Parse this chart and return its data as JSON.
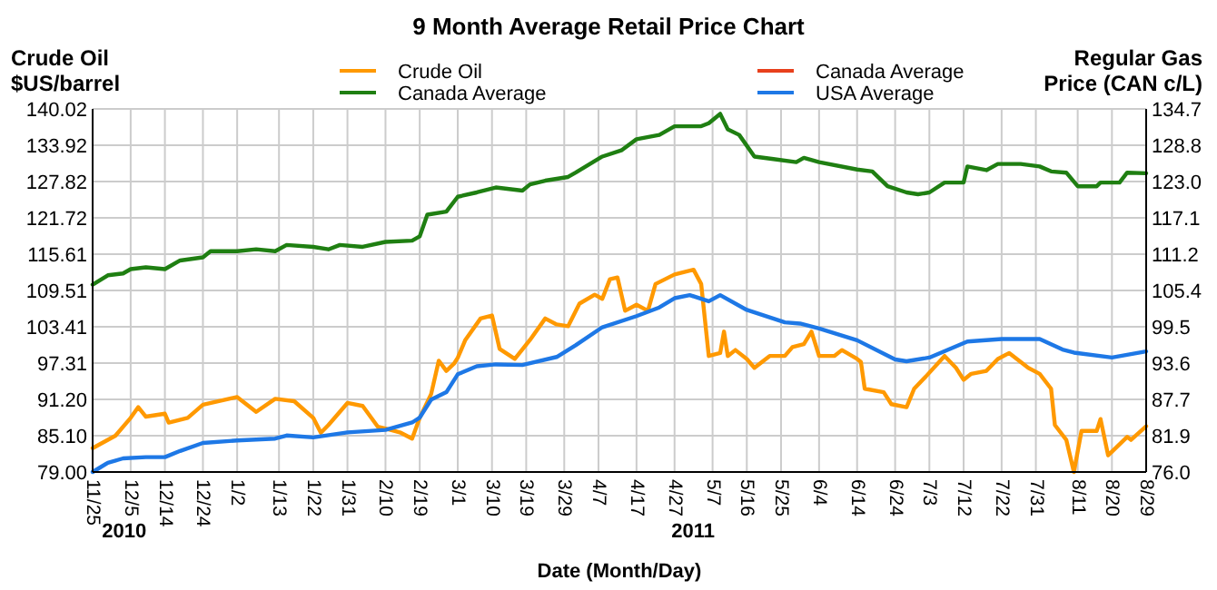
{
  "chart_data": {
    "type": "line",
    "title": "9 Month Average Retail Price Chart",
    "xlabel": "Date (Month/Day)",
    "ylabel": "Crude Oil\n$US/barrel",
    "y2label": "Regular Gas\nPrice (CAN c/L)",
    "annotations": [
      "2010",
      "2011"
    ],
    "xlim": [
      "2010-11-25",
      "2011-08-29"
    ],
    "xticks": [
      {
        "value": "2010-11-25",
        "label": "11/25"
      },
      {
        "value": "2010-12-05",
        "label": "12/5"
      },
      {
        "value": "2010-12-14",
        "label": "12/14"
      },
      {
        "value": "2010-12-24",
        "label": "12/24"
      },
      {
        "value": "2011-01-02",
        "label": "1/2"
      },
      {
        "value": "2011-01-13",
        "label": "1/13"
      },
      {
        "value": "2011-01-22",
        "label": "1/22"
      },
      {
        "value": "2011-01-31",
        "label": "1/31"
      },
      {
        "value": "2011-02-10",
        "label": "2/10"
      },
      {
        "value": "2011-02-19",
        "label": "2/19"
      },
      {
        "value": "2011-03-01",
        "label": "3/1"
      },
      {
        "value": "2011-03-10",
        "label": "3/10"
      },
      {
        "value": "2011-03-19",
        "label": "3/19"
      },
      {
        "value": "2011-03-29",
        "label": "3/29"
      },
      {
        "value": "2011-04-07",
        "label": "4/7"
      },
      {
        "value": "2011-04-17",
        "label": "4/17"
      },
      {
        "value": "2011-04-27",
        "label": "4/27"
      },
      {
        "value": "2011-05-07",
        "label": "5/7"
      },
      {
        "value": "2011-05-16",
        "label": "5/16"
      },
      {
        "value": "2011-05-25",
        "label": "5/25"
      },
      {
        "value": "2011-06-04",
        "label": "6/4"
      },
      {
        "value": "2011-06-14",
        "label": "6/14"
      },
      {
        "value": "2011-06-24",
        "label": "6/24"
      },
      {
        "value": "2011-07-03",
        "label": "7/3"
      },
      {
        "value": "2011-07-12",
        "label": "7/12"
      },
      {
        "value": "2011-07-22",
        "label": "7/22"
      },
      {
        "value": "2011-07-31",
        "label": "7/31"
      },
      {
        "value": "2011-08-11",
        "label": "8/11"
      },
      {
        "value": "2011-08-20",
        "label": "8/20"
      },
      {
        "value": "2011-08-29",
        "label": "8/29"
      }
    ],
    "ylim": [
      79.0,
      140.02
    ],
    "yticks": [
      {
        "value": 79,
        "label": "79.00"
      },
      {
        "value": 85.1,
        "label": "85.10"
      },
      {
        "value": 91.2,
        "label": "91.20"
      },
      97.31,
      103.41,
      109.51,
      115.61,
      121.72,
      127.82,
      133.92,
      140.02
    ],
    "y2lim": [
      76.0,
      134.7
    ],
    "y2ticks": [
      {
        "value": 76,
        "label": "76.0"
      },
      81.9,
      87.7,
      93.6,
      99.5,
      105.4,
      111.2,
      117.1,
      {
        "value": 123,
        "label": "123.0"
      },
      128.8,
      134.7
    ],
    "grid": true,
    "legend": "top",
    "marker": "none",
    "line_style": "solid",
    "series": [
      {
        "name": "Crude Oil",
        "color": "#ff9900",
        "x": [
          "2010-11-25",
          "2010-12-01",
          "2010-12-05",
          "2010-12-07",
          "2010-12-09",
          "2010-12-14",
          "2010-12-15",
          "2010-12-20",
          "2010-12-24",
          "2011-01-02",
          "2011-01-07",
          "2011-01-12",
          "2011-01-17",
          "2011-01-22",
          "2011-01-24",
          "2011-01-26",
          "2011-01-31",
          "2011-02-04",
          "2011-02-08",
          "2011-02-10",
          "2011-02-14",
          "2011-02-17",
          "2011-02-19",
          "2011-02-22",
          "2011-02-24",
          "2011-02-26",
          "2011-02-28",
          "2011-03-01",
          "2011-03-03",
          "2011-03-07",
          "2011-03-10",
          "2011-03-12",
          "2011-03-16",
          "2011-03-20",
          "2011-03-24",
          "2011-03-27",
          "2011-03-30",
          "2011-04-02",
          "2011-04-06",
          "2011-04-08",
          "2011-04-10",
          "2011-04-12",
          "2011-04-14",
          "2011-04-17",
          "2011-04-20",
          "2011-04-22",
          "2011-04-27",
          "2011-05-02",
          "2011-05-04",
          "2011-05-06",
          "2011-05-09",
          "2011-05-10",
          "2011-05-11",
          "2011-05-13",
          "2011-05-16",
          "2011-05-18",
          "2011-05-22",
          "2011-05-26",
          "2011-05-28",
          "2011-05-31",
          "2011-06-02",
          "2011-06-04",
          "2011-06-08",
          "2011-06-10",
          "2011-06-14",
          "2011-06-15",
          "2011-06-16",
          "2011-06-21",
          "2011-06-23",
          "2011-06-27",
          "2011-06-29",
          "2011-07-02",
          "2011-07-07",
          "2011-07-10",
          "2011-07-12",
          "2011-07-14",
          "2011-07-18",
          "2011-07-21",
          "2011-07-24",
          "2011-07-26",
          "2011-07-29",
          "2011-08-01",
          "2011-08-04",
          "2011-08-05",
          "2011-08-08",
          "2011-08-10",
          "2011-08-12",
          "2011-08-16",
          "2011-08-17",
          "2011-08-19",
          "2011-08-24",
          "2011-08-25",
          "2011-08-29"
        ],
        "values": [
          83.0,
          85.1,
          88.1,
          89.9,
          88.3,
          88.8,
          87.3,
          88.1,
          90.3,
          91.6,
          89.1,
          91.3,
          90.9,
          88.1,
          85.6,
          86.9,
          90.6,
          90.1,
          86.6,
          86.3,
          85.6,
          84.6,
          88.1,
          92.1,
          97.7,
          96.0,
          97.2,
          98.2,
          101.2,
          104.8,
          105.3,
          99.7,
          98.0,
          101.2,
          104.8,
          103.8,
          103.5,
          107.3,
          108.8,
          108.1,
          111.4,
          111.7,
          106.1,
          107.1,
          106.1,
          110.6,
          112.2,
          113.0,
          110.6,
          98.5,
          99.0,
          102.6,
          98.5,
          99.5,
          98.0,
          96.5,
          98.5,
          98.5,
          100.0,
          100.5,
          102.6,
          98.5,
          98.5,
          99.5,
          98.0,
          97.5,
          93.0,
          92.4,
          90.4,
          89.9,
          93.0,
          95.0,
          98.5,
          96.5,
          94.5,
          95.5,
          96.0,
          98.0,
          99.0,
          98.0,
          96.5,
          95.5,
          93.0,
          86.9,
          84.4,
          79.0,
          85.9,
          85.9,
          87.9,
          81.8,
          84.9,
          84.4,
          86.7
        ]
      },
      {
        "name": "Canada Average",
        "color": "#1f7f12",
        "axis": "y2",
        "x": [
          "2010-11-25",
          "2010-11-29",
          "2010-12-03",
          "2010-12-05",
          "2010-12-09",
          "2010-12-14",
          "2010-12-18",
          "2010-12-24",
          "2010-12-26",
          "2011-01-02",
          "2011-01-07",
          "2011-01-12",
          "2011-01-15",
          "2011-01-22",
          "2011-01-26",
          "2011-01-29",
          "2011-02-04",
          "2011-02-10",
          "2011-02-17",
          "2011-02-19",
          "2011-02-21",
          "2011-02-26",
          "2011-03-01",
          "2011-03-06",
          "2011-03-11",
          "2011-03-18",
          "2011-03-20",
          "2011-03-24",
          "2011-03-30",
          "2011-04-01",
          "2011-04-08",
          "2011-04-13",
          "2011-04-17",
          "2011-04-23",
          "2011-04-27",
          "2011-05-04",
          "2011-05-06",
          "2011-05-09",
          "2011-05-11",
          "2011-05-14",
          "2011-05-18",
          "2011-05-23",
          "2011-05-29",
          "2011-05-31",
          "2011-06-04",
          "2011-06-14",
          "2011-06-18",
          "2011-06-22",
          "2011-06-27",
          "2011-06-30",
          "2011-07-03",
          "2011-07-07",
          "2011-07-12",
          "2011-07-13",
          "2011-07-18",
          "2011-07-21",
          "2011-07-27",
          "2011-08-01",
          "2011-08-04",
          "2011-08-08",
          "2011-08-11",
          "2011-08-16",
          "2011-08-17",
          "2011-08-22",
          "2011-08-24",
          "2011-08-29"
        ],
        "values": [
          106.3,
          107.8,
          108.1,
          108.8,
          109.1,
          108.8,
          110.2,
          110.7,
          111.7,
          111.7,
          112.0,
          111.7,
          112.7,
          112.4,
          112.0,
          112.7,
          112.4,
          113.2,
          113.4,
          114.1,
          117.6,
          118.1,
          120.5,
          121.2,
          122.0,
          121.5,
          122.5,
          123.1,
          123.7,
          124.4,
          127.0,
          128.0,
          129.8,
          130.5,
          131.9,
          131.9,
          132.4,
          133.9,
          131.4,
          130.5,
          127.0,
          126.6,
          126.1,
          126.8,
          126.1,
          124.9,
          124.6,
          122.2,
          121.2,
          120.9,
          121.2,
          122.8,
          122.8,
          125.4,
          124.8,
          125.8,
          125.8,
          125.4,
          124.6,
          124.4,
          122.2,
          122.2,
          122.8,
          122.8,
          124.4,
          124.3
        ]
      },
      {
        "name": "Canada Average",
        "color": "#e8401c",
        "axis": "y2"
      },
      {
        "name": "USA Average",
        "color": "#1e78e6",
        "axis": "y2",
        "x": [
          "2010-11-25",
          "2010-11-29",
          "2010-12-03",
          "2010-12-09",
          "2010-12-14",
          "2010-12-18",
          "2010-12-24",
          "2011-01-02",
          "2011-01-12",
          "2011-01-15",
          "2011-01-22",
          "2011-01-31",
          "2011-02-10",
          "2011-02-17",
          "2011-02-19",
          "2011-02-22",
          "2011-02-26",
          "2011-03-01",
          "2011-03-06",
          "2011-03-11",
          "2011-03-18",
          "2011-03-20",
          "2011-03-27",
          "2011-04-01",
          "2011-04-08",
          "2011-04-17",
          "2011-04-23",
          "2011-04-27",
          "2011-05-01",
          "2011-05-06",
          "2011-05-09",
          "2011-05-16",
          "2011-05-26",
          "2011-05-30",
          "2011-06-04",
          "2011-06-14",
          "2011-06-24",
          "2011-06-27",
          "2011-07-03",
          "2011-07-13",
          "2011-07-22",
          "2011-08-01",
          "2011-08-07",
          "2011-08-10",
          "2011-08-20",
          "2011-08-29"
        ],
        "values": [
          76.0,
          77.5,
          78.2,
          78.4,
          78.4,
          79.4,
          80.7,
          81.1,
          81.4,
          81.9,
          81.6,
          82.4,
          82.8,
          84.0,
          84.8,
          87.7,
          88.9,
          91.8,
          93.1,
          93.4,
          93.3,
          93.6,
          94.6,
          96.5,
          99.4,
          101.2,
          102.6,
          104.1,
          104.6,
          103.6,
          104.6,
          102.2,
          100.2,
          100.0,
          99.2,
          97.3,
          94.2,
          93.9,
          94.5,
          97.1,
          97.5,
          97.5,
          95.8,
          95.3,
          94.5,
          95.5
        ]
      }
    ]
  }
}
